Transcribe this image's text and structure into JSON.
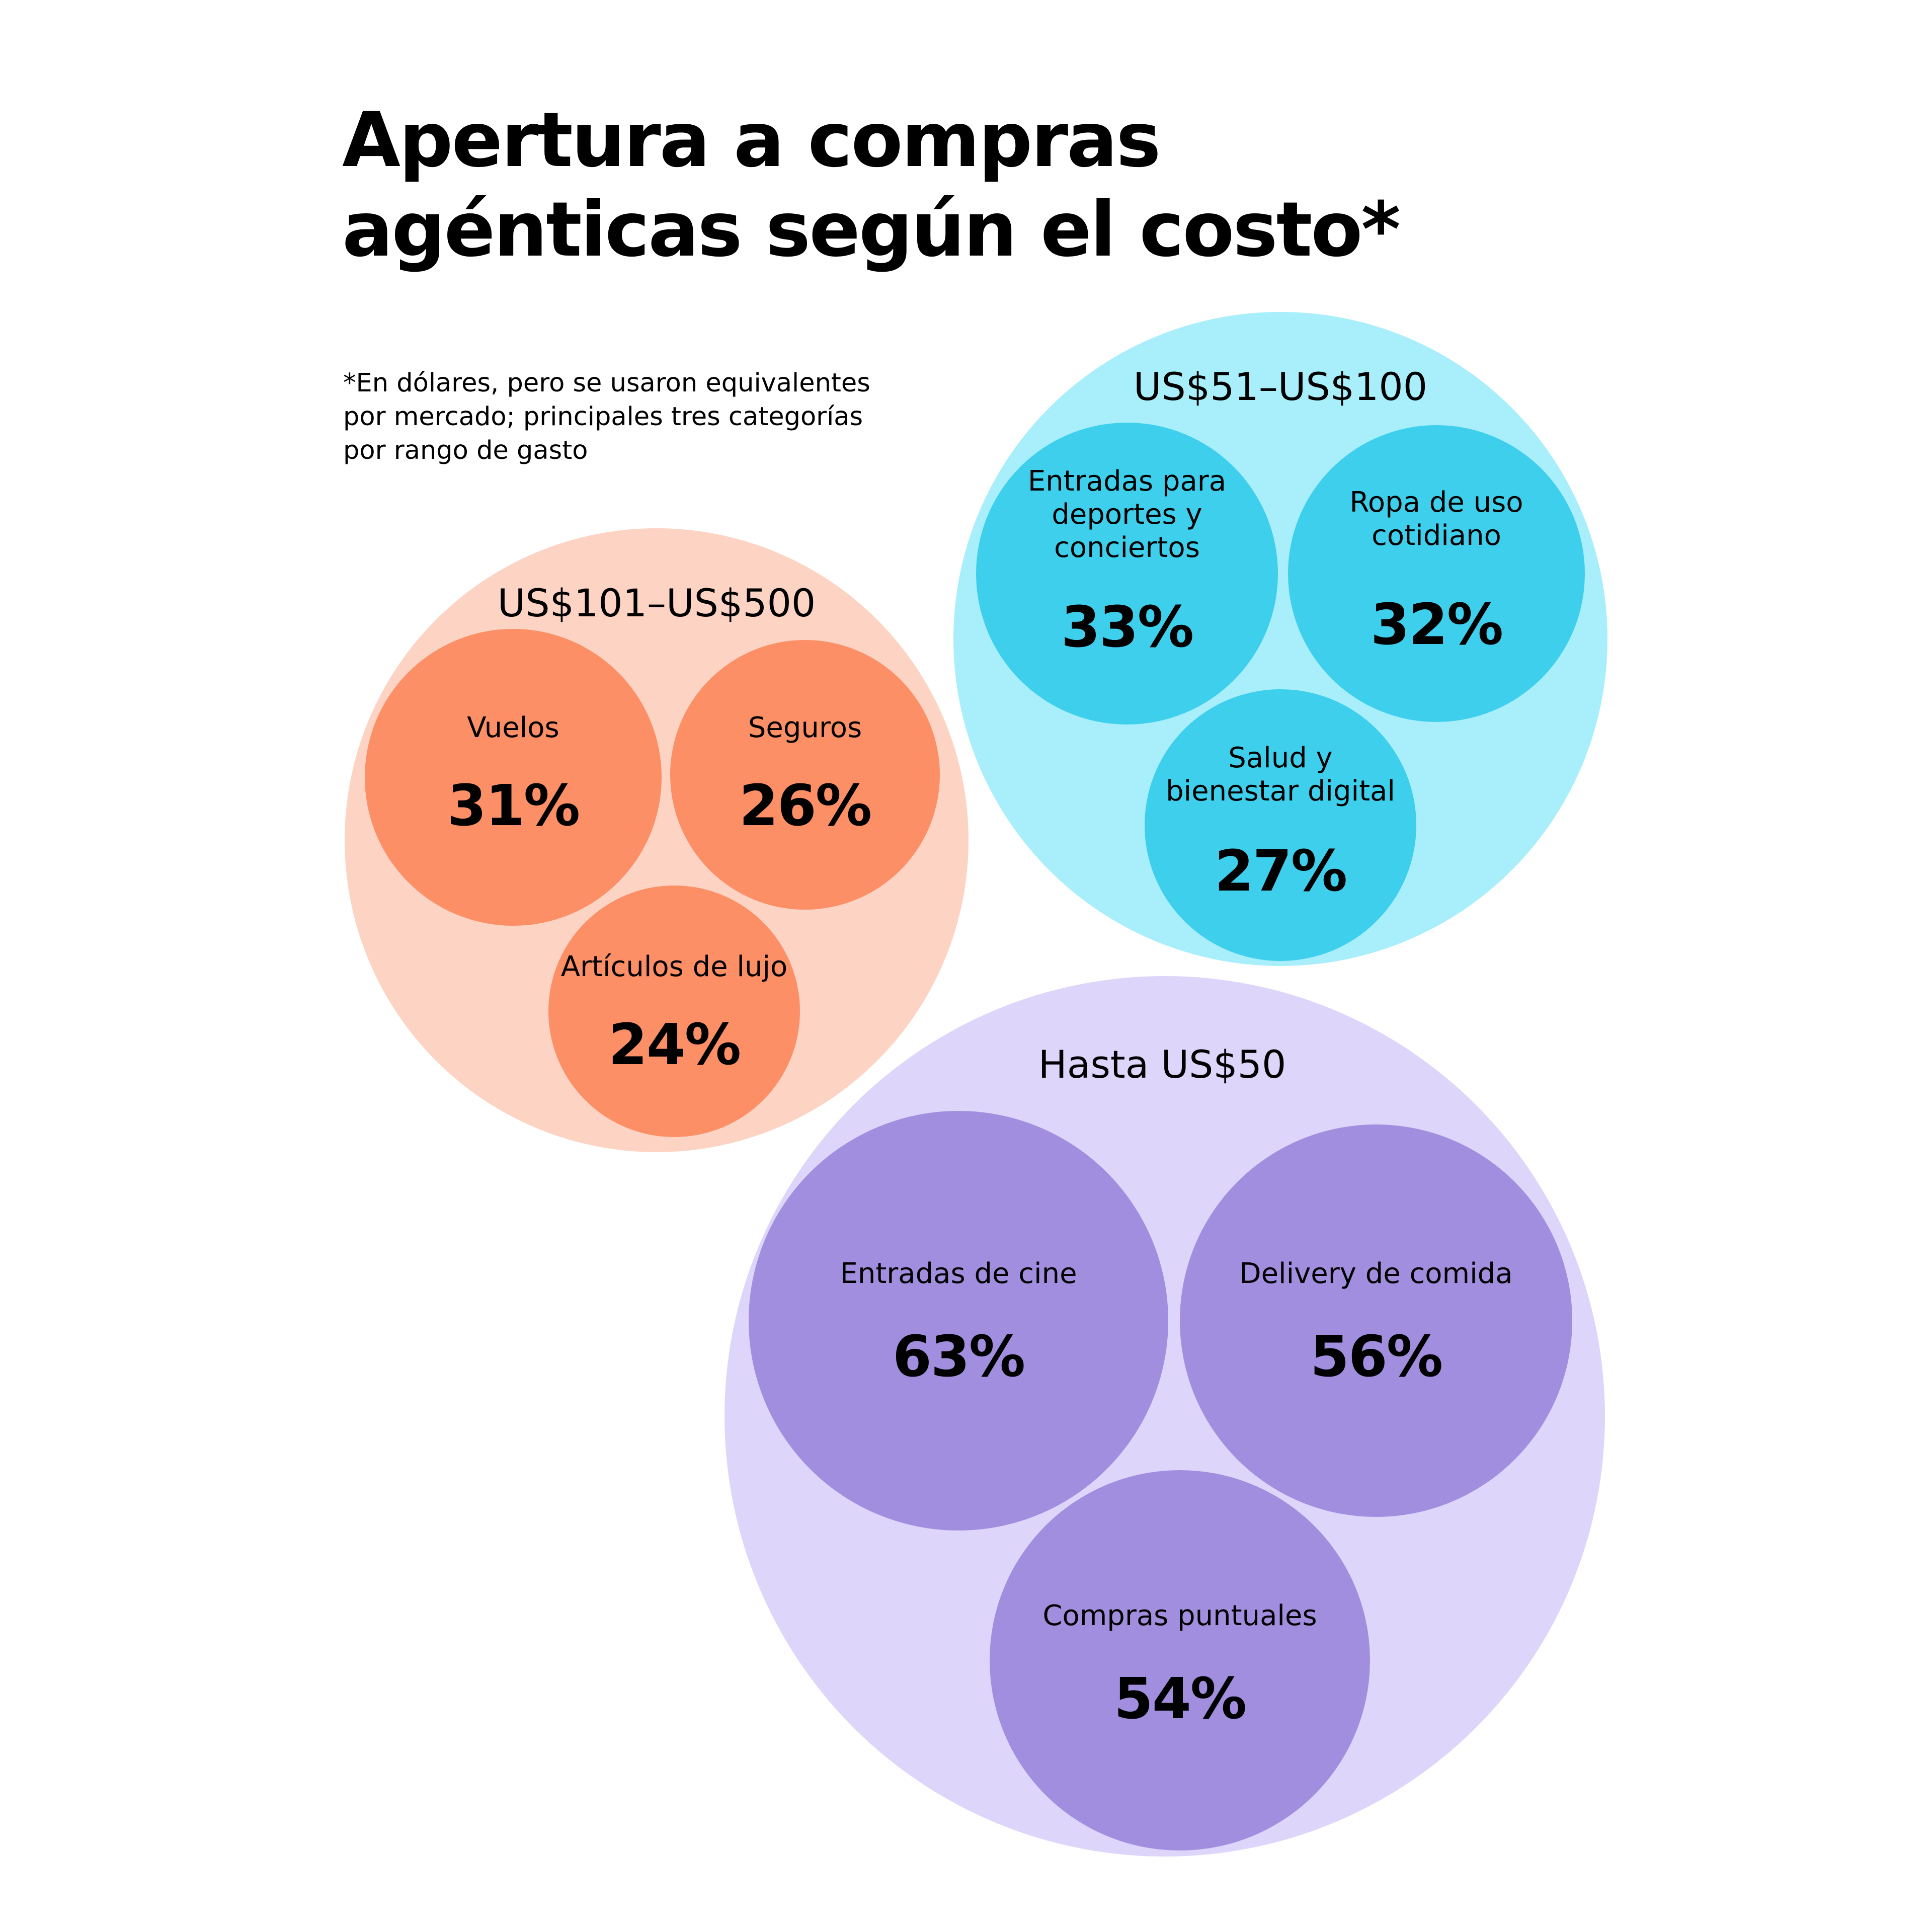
{
  "title": [
    "Apertura a compras",
    "agénticas según el costo*"
  ],
  "footnote": [
    "*En dólares, pero se usaron equivalentes",
    "por mercado; principales tres categorías",
    "por rango de gasto"
  ],
  "chart_data": {
    "type": "bubble",
    "groups": [
      {
        "name": "US$51–US$100",
        "outer_color": "#a8eefb",
        "inner_color": "#3ecfed",
        "categories": [
          {
            "label": [
              "Entradas para",
              "deportes y",
              "conciertos"
            ],
            "value": 33,
            "display": "33%"
          },
          {
            "label": [
              "Ropa de uso",
              "cotidiano"
            ],
            "value": 32,
            "display": "32%"
          },
          {
            "label": [
              "Salud y",
              "bienestar digital"
            ],
            "value": 27,
            "display": "27%"
          }
        ]
      },
      {
        "name": "US$101–US$500",
        "outer_color": "#fdd3c4",
        "inner_color": "#fc8f66",
        "categories": [
          {
            "label": [
              "Vuelos"
            ],
            "value": 31,
            "display": "31%"
          },
          {
            "label": [
              "Seguros"
            ],
            "value": 26,
            "display": "26%"
          },
          {
            "label": [
              "Artículos de lujo"
            ],
            "value": 24,
            "display": "24%"
          }
        ]
      },
      {
        "name": "Hasta US$50",
        "outer_color": "#ded5fb",
        "inner_color": "#a28ede",
        "categories": [
          {
            "label": [
              "Entradas de cine"
            ],
            "value": 63,
            "display": "63%"
          },
          {
            "label": [
              "Delivery de comida"
            ],
            "value": 56,
            "display": "56%"
          },
          {
            "label": [
              "Compras puntuales"
            ],
            "value": 54,
            "display": "54%"
          }
        ]
      }
    ]
  }
}
